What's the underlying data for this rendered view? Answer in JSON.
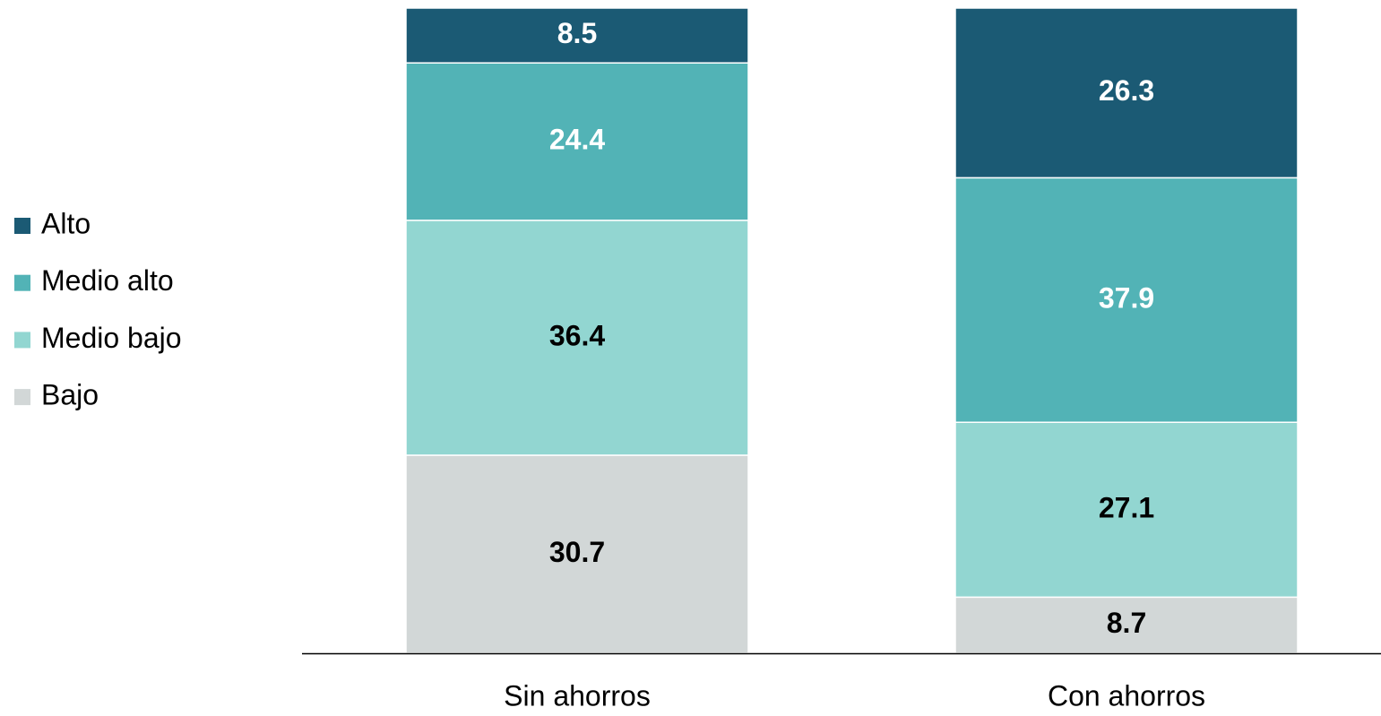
{
  "chart_data": {
    "type": "stacked_bar",
    "categories": [
      "Sin ahorros",
      "Con ahorros"
    ],
    "series": [
      {
        "name": "Bajo",
        "color": "#d2d7d7",
        "label_color": "#000000",
        "values": [
          30.7,
          8.7
        ]
      },
      {
        "name": "Medio bajo",
        "color": "#92d6d1",
        "label_color": "#000000",
        "values": [
          36.4,
          27.1
        ]
      },
      {
        "name": "Medio alto",
        "color": "#52b3b6",
        "label_color": "#ffffff",
        "values": [
          24.4,
          37.9
        ]
      },
      {
        "name": "Alto",
        "color": "#1b5a74",
        "label_color": "#ffffff",
        "values": [
          8.5,
          26.3
        ]
      }
    ],
    "ylim": [
      0,
      100
    ],
    "legend": "left"
  }
}
